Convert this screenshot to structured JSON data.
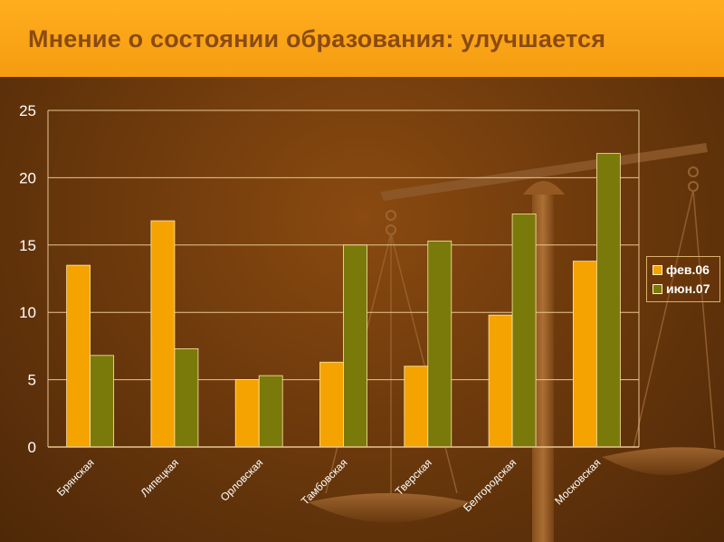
{
  "title": "Мнение о состоянии образования: улучшается",
  "colors": {
    "header": "#f9a415",
    "title_text": "#8a4a12",
    "background": "#6e3a0c",
    "series_1": "#f5a300",
    "series_2": "#7a7a0a",
    "gridline": "#e8c690",
    "text": "#ffffff"
  },
  "decoration": {
    "background_art": "scales-icon"
  },
  "chart_data": {
    "type": "bar",
    "title": "Мнение о состоянии образования: улучшается",
    "xlabel": "",
    "ylabel": "",
    "categories": [
      "Брянская",
      "Липецкая",
      "Орловская",
      "Тамбовская",
      "Тверская",
      "Белгородская",
      "Московская"
    ],
    "series": [
      {
        "name": "фев.06",
        "values": [
          13.5,
          16.8,
          5.0,
          6.3,
          6.0,
          9.8,
          13.8
        ]
      },
      {
        "name": "июн.07",
        "values": [
          6.8,
          7.3,
          5.3,
          15.0,
          15.3,
          17.3,
          21.8
        ]
      }
    ],
    "ylim": [
      0,
      25
    ],
    "yticks": [
      0,
      5,
      10,
      15,
      20,
      25
    ],
    "grid": true,
    "legend_position": "right"
  }
}
